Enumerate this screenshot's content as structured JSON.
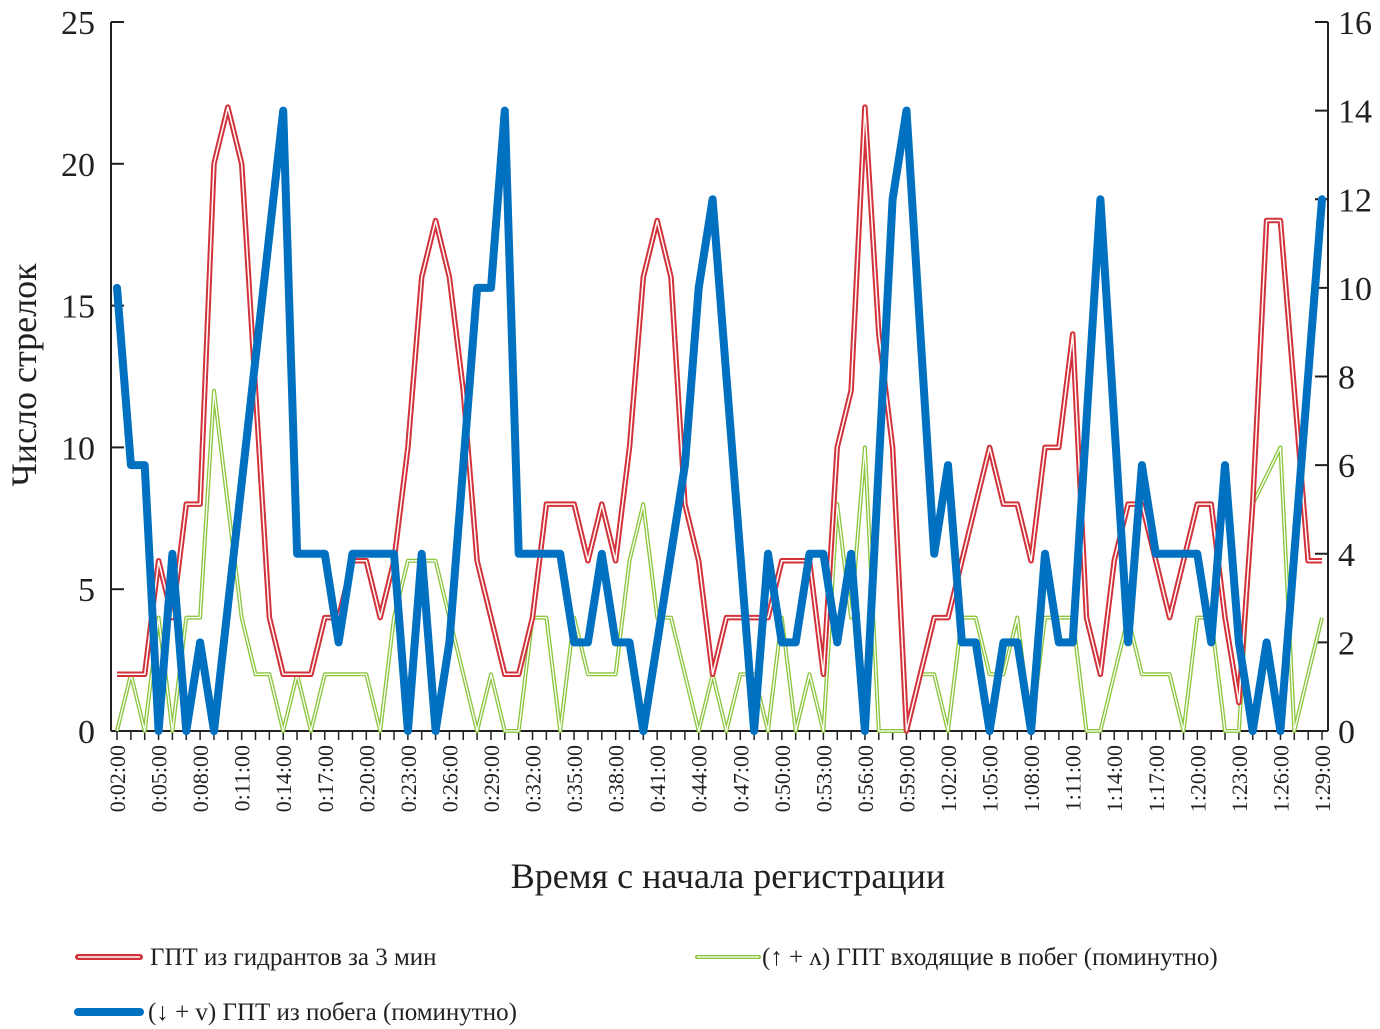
{
  "chart_data": {
    "type": "line",
    "xlabel": "Время с начала регистрации",
    "ylabel": "Число стрелок",
    "ylim": [
      0,
      25
    ],
    "y2lim": [
      0,
      16
    ],
    "yticks": [
      0,
      5,
      10,
      15,
      20,
      25
    ],
    "y2ticks": [
      0,
      2,
      4,
      6,
      8,
      10,
      12,
      14,
      16
    ],
    "x_start_minute": 2,
    "x_end_minute": 89,
    "x_tick_labels": [
      "0:02:00",
      "0:05:00",
      "0:08:00",
      "0:11:00",
      "0:14:00",
      "0:17:00",
      "0:20:00",
      "0:23:00",
      "0:26:00",
      "0:29:00",
      "0:32:00",
      "0:35:00",
      "0:38:00",
      "0:41:00",
      "0:44:00",
      "0:47:00",
      "0:50:00",
      "0:53:00",
      "0:56:00",
      "0:59:00",
      "1:02:00",
      "1:05:00",
      "1:08:00",
      "1:11:00",
      "1:14:00",
      "1:17:00",
      "1:20:00",
      "1:23:00",
      "1:26:00",
      "1:29:00"
    ],
    "grid": false,
    "legend_placement": "bottom",
    "series": [
      {
        "name": "ГПТ из гидрантов за 3 мин",
        "axis": "left",
        "color": "#d2323a",
        "values": [
          2,
          2,
          2,
          6,
          4,
          8,
          8,
          20,
          22,
          20,
          12,
          4,
          2,
          2,
          2,
          4,
          4,
          6,
          6,
          4,
          6,
          10,
          16,
          18,
          16,
          12,
          6,
          4,
          2,
          2,
          4,
          8,
          8,
          8,
          6,
          8,
          6,
          10,
          16,
          18,
          16,
          8,
          6,
          2,
          4,
          4,
          4,
          4,
          6,
          6,
          6,
          2,
          10,
          12,
          22,
          14,
          10,
          0,
          2,
          4,
          4,
          6,
          8,
          10,
          8,
          8,
          6,
          10,
          10,
          14,
          4,
          2,
          6,
          8,
          8,
          6,
          4,
          6,
          8,
          8,
          4,
          1,
          8,
          18,
          18,
          12,
          6,
          6
        ]
      },
      {
        "name": "(↑ + ʌ) ГПТ входящие в побег (поминутно)",
        "axis": "left",
        "color": "#8cc63f",
        "values": [
          0,
          2,
          0,
          4,
          0,
          4,
          4,
          12,
          8,
          4,
          2,
          2,
          0,
          2,
          0,
          2,
          2,
          2,
          2,
          0,
          4,
          6,
          6,
          6,
          4,
          2,
          0,
          2,
          0,
          0,
          4,
          4,
          0,
          4,
          2,
          2,
          2,
          6,
          8,
          4,
          4,
          2,
          0,
          2,
          0,
          2,
          2,
          0,
          4,
          0,
          2,
          0,
          8,
          4,
          10,
          0,
          0,
          0,
          2,
          2,
          0,
          4,
          4,
          2,
          2,
          4,
          0,
          4,
          4,
          4,
          0,
          0,
          2,
          4,
          2,
          2,
          2,
          0,
          4,
          4,
          0,
          0,
          8,
          9,
          10,
          0,
          2,
          4
        ]
      },
      {
        "name": "(↓ + v) ГПТ из побега (поминутно)",
        "axis": "right",
        "color": "#0070c0",
        "values": [
          10,
          6,
          6,
          0,
          4,
          0,
          2,
          0,
          2.8,
          5.6,
          8.4,
          11.2,
          14,
          4,
          4,
          4,
          2,
          4,
          4,
          4,
          4,
          0,
          4,
          0,
          2,
          6,
          10,
          10,
          14,
          4,
          4,
          4,
          4,
          2,
          2,
          4,
          2,
          2,
          0,
          2,
          4,
          6,
          10,
          12,
          8,
          4,
          0,
          4,
          2,
          2,
          4,
          4,
          2,
          4,
          0,
          6,
          12,
          14,
          9,
          4,
          6,
          2,
          2,
          0,
          2,
          2,
          0,
          4,
          2,
          2,
          7,
          12,
          7,
          2,
          6,
          4,
          4,
          4,
          4,
          2,
          6,
          2,
          0,
          2,
          0,
          4,
          8,
          12
        ]
      }
    ]
  },
  "legend": {
    "red": "ГПТ из гидрантов за 3 мин",
    "green": "(↑ + ʌ) ГПТ входящие в побег (поминутно)",
    "blue": "(↓ + v) ГПТ из побега (поминутно)"
  }
}
